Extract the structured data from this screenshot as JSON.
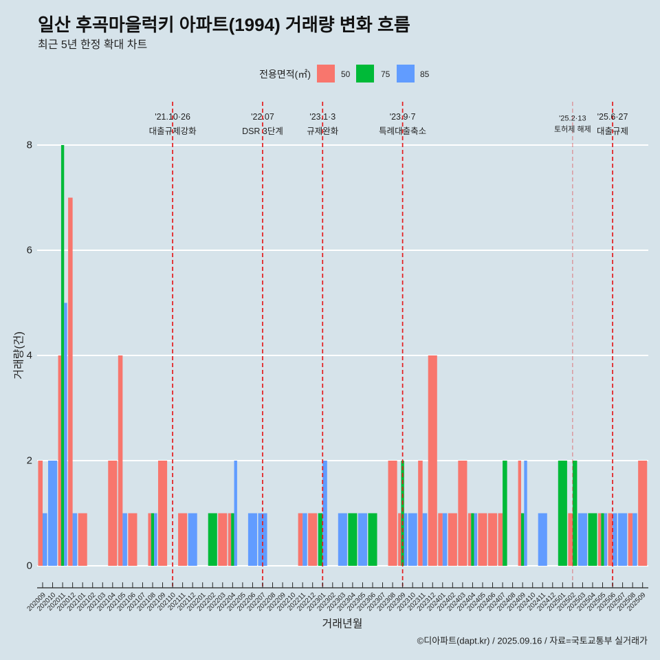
{
  "header": {
    "title": "일산 후곡마을럭키 아파트(1994) 거래량 변화 흐름",
    "subtitle": "최근 5년 한정 확대 차트"
  },
  "legend": {
    "title": "전용면적(㎡)",
    "position": "top",
    "items": [
      {
        "label": "50",
        "color": "#f8766d"
      },
      {
        "label": "75",
        "color": "#00ba38"
      },
      {
        "label": "85",
        "color": "#619cff"
      }
    ]
  },
  "caption": "©디아파트(dapt.kr) / 2025.09.16 / 자료=국토교통부 실거래가",
  "chart_data": {
    "type": "bar",
    "title": "일산 후곡마을럭키 아파트(1994) 거래량 변화 흐름",
    "subtitle": "최근 5년 한정 확대 차트",
    "xlabel": "거래년월",
    "ylabel": "거래량(건)",
    "ylim": [
      -0.42,
      8.82
    ],
    "y_ticks": [
      0,
      2,
      4,
      6,
      8
    ],
    "grid": "y-major",
    "legend_position": "top",
    "bar_position": "dodge",
    "categories": [
      "202009",
      "202010",
      "202011",
      "202012",
      "202101",
      "202102",
      "202103",
      "202104",
      "202105",
      "202106",
      "202107",
      "202108",
      "202109",
      "202110",
      "202111",
      "202112",
      "202201",
      "202202",
      "202203",
      "202204",
      "202205",
      "202206",
      "202207",
      "202208",
      "202209",
      "202210",
      "202211",
      "202212",
      "202301",
      "202302",
      "202303",
      "202304",
      "202305",
      "202306",
      "202307",
      "202308",
      "202309",
      "202310",
      "202311",
      "202312",
      "202401",
      "202402",
      "202403",
      "202404",
      "202405",
      "202406",
      "202407",
      "202408",
      "202409",
      "202410",
      "202411",
      "202412",
      "202501",
      "202502",
      "202503",
      "202504",
      "202505",
      "202506",
      "202507",
      "202508",
      "202509"
    ],
    "series": [
      {
        "name": "50",
        "color": "#f8766d",
        "values": [
          2,
          null,
          4,
          7,
          1,
          null,
          null,
          2,
          4,
          1,
          null,
          1,
          2,
          null,
          1,
          null,
          null,
          null,
          1,
          1,
          null,
          null,
          null,
          null,
          null,
          null,
          1,
          1,
          null,
          null,
          null,
          null,
          null,
          null,
          null,
          2,
          1,
          null,
          2,
          4,
          1,
          1,
          2,
          1,
          1,
          1,
          1,
          null,
          2,
          null,
          null,
          null,
          null,
          1,
          null,
          null,
          1,
          1,
          null,
          1,
          2
        ]
      },
      {
        "name": "75",
        "color": "#00ba38",
        "values": [
          null,
          null,
          8,
          null,
          null,
          null,
          null,
          null,
          null,
          null,
          null,
          1,
          null,
          null,
          null,
          null,
          null,
          1,
          null,
          1,
          null,
          null,
          null,
          null,
          null,
          null,
          null,
          null,
          1,
          null,
          null,
          1,
          null,
          1,
          null,
          null,
          2,
          null,
          null,
          null,
          null,
          null,
          null,
          1,
          null,
          null,
          2,
          null,
          1,
          null,
          null,
          null,
          2,
          2,
          null,
          1,
          1,
          null,
          null,
          null,
          null
        ]
      },
      {
        "name": "85",
        "color": "#619cff",
        "values": [
          1,
          2,
          5,
          1,
          null,
          null,
          null,
          null,
          1,
          null,
          null,
          1,
          null,
          null,
          null,
          1,
          null,
          null,
          null,
          2,
          null,
          1,
          1,
          null,
          null,
          null,
          1,
          null,
          2,
          null,
          1,
          null,
          1,
          null,
          null,
          null,
          1,
          1,
          1,
          null,
          1,
          null,
          null,
          1,
          null,
          null,
          null,
          null,
          2,
          null,
          1,
          null,
          null,
          null,
          1,
          null,
          1,
          1,
          1,
          1,
          null
        ]
      }
    ],
    "annotations": [
      {
        "x": "202110",
        "y": 8.4,
        "date": "'21.10·26",
        "label": "대출규제강화",
        "color": "#e41a1c",
        "emphasis": "high"
      },
      {
        "x": "202207",
        "y": 8.4,
        "date": "'22.07",
        "label": "DSR 3단계",
        "color": "#e41a1c",
        "emphasis": "high"
      },
      {
        "x": "202301",
        "y": 8.4,
        "date": "'23.1·3",
        "label": "규제완화",
        "color": "#e41a1c",
        "emphasis": "high"
      },
      {
        "x": "202309",
        "y": 8.4,
        "date": "'23.9·7",
        "label": "특례대출축소",
        "color": "#e41a1c",
        "emphasis": "high"
      },
      {
        "x": "202502",
        "y": 8.4,
        "date": "'25.2·13",
        "label": "토허제 해제",
        "color": "#e41a1c",
        "emphasis": "low"
      },
      {
        "x": "202506",
        "y": 8.4,
        "date": "'25.6·27",
        "label": "대출규제",
        "color": "#e41a1c",
        "emphasis": "high"
      }
    ]
  }
}
